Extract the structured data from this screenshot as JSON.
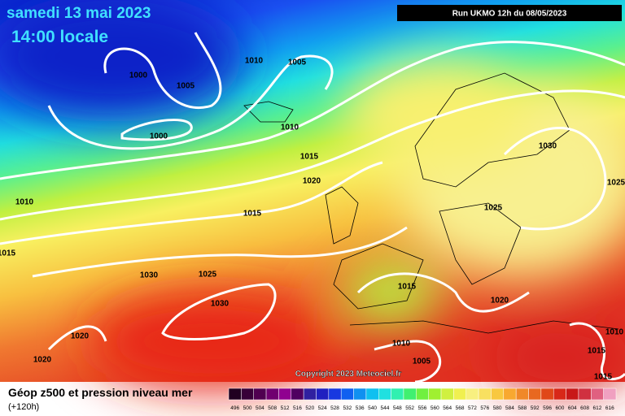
{
  "header": {
    "date": "samedi 13 mai 2023",
    "time": "14:00 locale",
    "run": "Run UKMO 12h du 08/05/2023"
  },
  "isobar_labels": [
    "1000",
    "1005",
    "1000",
    "1010",
    "1005",
    "1010",
    "1015",
    "1020",
    "1010",
    "1015",
    "1015",
    "1030",
    "1025",
    "1030",
    "1020",
    "1020",
    "1030",
    "1025",
    "1025",
    "1015",
    "1020",
    "1010",
    "1005",
    "1010",
    "1015",
    "1015"
  ],
  "copyright": "Copyright 2023 Meteociel.fr",
  "legend": {
    "title": "Géop z500 et pression niveau mer",
    "subtitle": "(+120h)",
    "scale": [
      "496",
      "500",
      "504",
      "508",
      "512",
      "516",
      "520",
      "524",
      "528",
      "532",
      "536",
      "540",
      "544",
      "548",
      "552",
      "556",
      "560",
      "564",
      "568",
      "572",
      "576",
      "580",
      "584",
      "588",
      "592",
      "596",
      "600",
      "604",
      "608",
      "612",
      "616"
    ]
  }
}
